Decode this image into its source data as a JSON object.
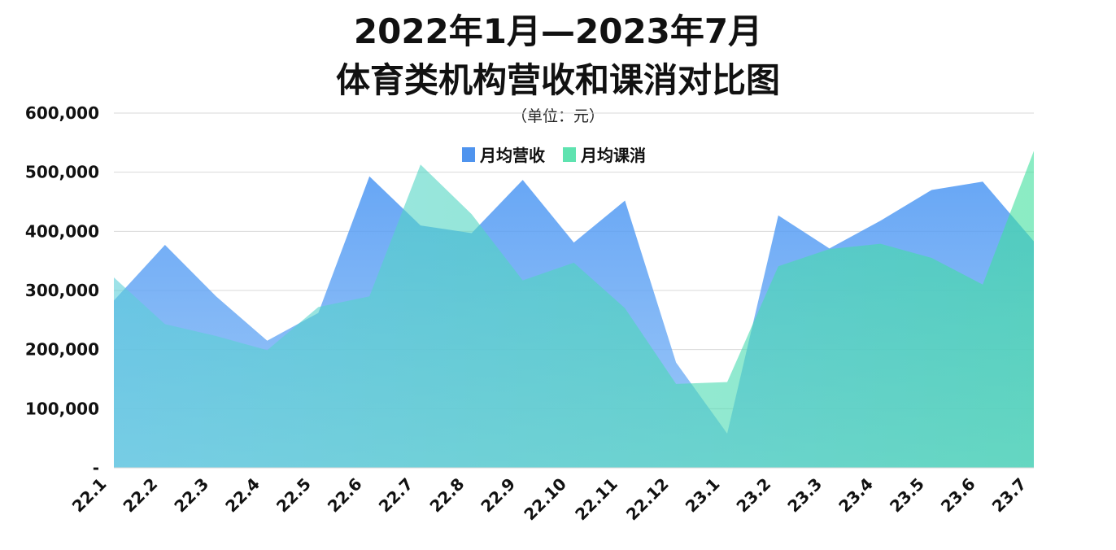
{
  "chart_data": {
    "type": "area",
    "title_line1": "2022年1月—2023年7月",
    "title_line2": "体育类机构营收和课消对比图",
    "subtitle": "（单位：元）",
    "xlabel": "",
    "ylabel": "",
    "categories": [
      "22.1",
      "22.2",
      "22.3",
      "22.4",
      "22.5",
      "22.6",
      "22.7",
      "22.8",
      "22.9",
      "22.10",
      "22.11",
      "22.12",
      "23.1",
      "23.2",
      "23.3",
      "23.4",
      "23.5",
      "23.6",
      "23.7"
    ],
    "series": [
      {
        "name": "月均营收",
        "color": "#4a90f0",
        "values": [
          283000,
          377000,
          290000,
          215000,
          262000,
          493000,
          410000,
          397000,
          487000,
          381000,
          452000,
          178000,
          58000,
          427000,
          371000,
          418000,
          470000,
          484000,
          383000
        ]
      },
      {
        "name": "月均课消",
        "color": "#3ddc9c",
        "values": [
          322000,
          243000,
          223000,
          199000,
          272000,
          290000,
          513000,
          429000,
          317000,
          347000,
          270000,
          142000,
          145000,
          341000,
          370000,
          379000,
          355000,
          310000,
          536000
        ]
      }
    ],
    "ylim": [
      0,
      600000
    ],
    "yticks": [
      "-",
      "100,000",
      "200,000",
      "300,000",
      "400,000",
      "500,000",
      "600,000"
    ],
    "ytick_values": [
      0,
      100000,
      200000,
      300000,
      400000,
      500000,
      600000
    ],
    "grid": true,
    "legend_position": "top-center"
  }
}
